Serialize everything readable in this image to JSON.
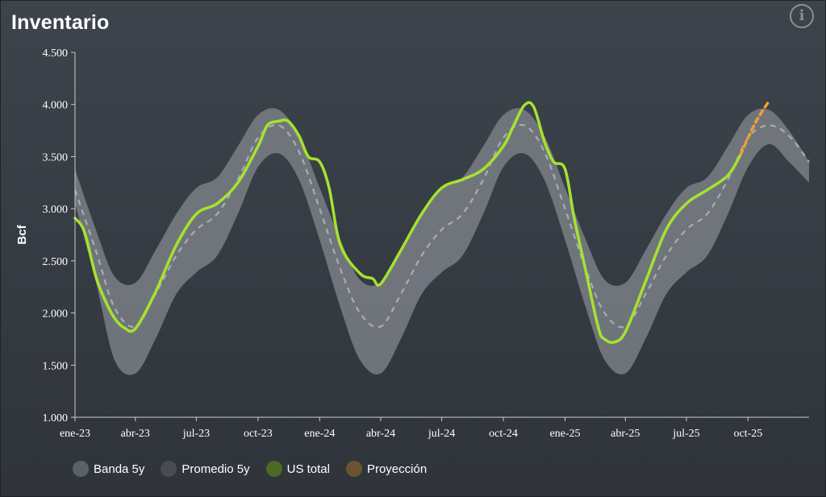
{
  "header": {
    "title": "Inventario",
    "info_icon_glyph": "i"
  },
  "colors": {
    "band": "#7a7f86",
    "average": "#a9adb2",
    "us_total": "#a6e22e",
    "projection": "#f0a030",
    "axis": "#c9cdd2",
    "text": "#ffffff"
  },
  "legend": [
    {
      "label": "Banda 5y",
      "color": "#5b616a"
    },
    {
      "label": "Promedio 5y",
      "color": "#474c53"
    },
    {
      "label": "US total",
      "color": "#4a6b24"
    },
    {
      "label": "Proyección",
      "color": "#6b5530"
    }
  ],
  "chart_data": {
    "type": "line",
    "title": "Inventario",
    "ylabel": "Bcf",
    "xlabel": "",
    "ylim": [
      1000,
      4500
    ],
    "yticks": [
      1000,
      1500,
      2000,
      2500,
      3000,
      3500,
      4000,
      4500
    ],
    "ytick_labels": [
      "1.000",
      "1.500",
      "2.000",
      "2.500",
      "3.000",
      "3.500",
      "4.000",
      "4.500"
    ],
    "xlim": [
      "2023-01-01",
      "2025-12-31"
    ],
    "xticks": [
      "2023-01-01",
      "2023-04-01",
      "2023-07-01",
      "2023-10-01",
      "2024-01-01",
      "2024-04-01",
      "2024-07-01",
      "2024-10-01",
      "2025-01-01",
      "2025-04-01",
      "2025-07-01",
      "2025-10-01"
    ],
    "xtick_labels": [
      "ene-23",
      "abr-23",
      "jul-23",
      "oct-23",
      "ene-24",
      "abr-24",
      "jul-24",
      "oct-24",
      "ene-25",
      "abr-25",
      "jul-25",
      "oct-25"
    ],
    "grid": false,
    "legend_position": "bottom-left",
    "series": [
      {
        "name": "Banda 5y",
        "kind": "band",
        "x": [
          "2023-01-01",
          "2023-02-01",
          "2023-03-01",
          "2023-04-01",
          "2023-05-01",
          "2023-06-01",
          "2023-07-01",
          "2023-08-01",
          "2023-09-01",
          "2023-10-01",
          "2023-11-01",
          "2023-12-01",
          "2024-01-01",
          "2024-02-01",
          "2024-03-01",
          "2024-04-01",
          "2024-05-01",
          "2024-06-01",
          "2024-07-01",
          "2024-08-01",
          "2024-09-01",
          "2024-10-01",
          "2024-11-01",
          "2024-12-01",
          "2025-01-01",
          "2025-02-01",
          "2025-03-01",
          "2025-04-01",
          "2025-05-01",
          "2025-06-01",
          "2025-07-01",
          "2025-08-01",
          "2025-09-01",
          "2025-10-01",
          "2025-11-01",
          "2025-12-01",
          "2025-12-31"
        ],
        "lower": [
          3050,
          2300,
          1550,
          1420,
          1750,
          2180,
          2390,
          2550,
          2950,
          3400,
          3530,
          3280,
          2700,
          2050,
          1550,
          1420,
          1750,
          2180,
          2390,
          2550,
          2950,
          3400,
          3530,
          3280,
          2700,
          2050,
          1550,
          1420,
          1750,
          2180,
          2390,
          2550,
          2950,
          3400,
          3620,
          3450,
          3250
        ],
        "upper": [
          3380,
          2800,
          2350,
          2290,
          2600,
          2950,
          3200,
          3300,
          3600,
          3900,
          3950,
          3700,
          3200,
          2700,
          2320,
          2290,
          2600,
          2950,
          3200,
          3300,
          3600,
          3900,
          3950,
          3700,
          3200,
          2700,
          2320,
          2290,
          2600,
          2950,
          3200,
          3300,
          3600,
          3900,
          3950,
          3750,
          3450
        ]
      },
      {
        "name": "Promedio 5y",
        "kind": "dashed",
        "x": [
          "2023-01-01",
          "2023-02-01",
          "2023-03-01",
          "2023-04-01",
          "2023-05-01",
          "2023-06-01",
          "2023-07-01",
          "2023-08-01",
          "2023-09-01",
          "2023-10-01",
          "2023-11-01",
          "2023-12-01",
          "2024-01-01",
          "2024-02-01",
          "2024-03-01",
          "2024-04-01",
          "2024-05-01",
          "2024-06-01",
          "2024-07-01",
          "2024-08-01",
          "2024-09-01",
          "2024-10-01",
          "2024-11-01",
          "2024-12-01",
          "2025-01-01",
          "2025-02-01",
          "2025-03-01",
          "2025-04-01",
          "2025-05-01",
          "2025-06-01",
          "2025-07-01",
          "2025-08-01",
          "2025-09-01",
          "2025-10-01",
          "2025-11-01",
          "2025-12-01",
          "2025-12-31"
        ],
        "values": [
          3180,
          2600,
          2050,
          1870,
          2180,
          2550,
          2800,
          2950,
          3280,
          3680,
          3800,
          3550,
          3000,
          2420,
          2000,
          1870,
          2180,
          2550,
          2800,
          2950,
          3280,
          3680,
          3800,
          3550,
          3000,
          2420,
          2000,
          1870,
          2180,
          2550,
          2800,
          2950,
          3280,
          3680,
          3800,
          3700,
          3450
        ]
      },
      {
        "name": "US total",
        "kind": "solid",
        "x": [
          "2023-01-01",
          "2023-01-15",
          "2023-02-01",
          "2023-02-15",
          "2023-03-01",
          "2023-03-15",
          "2023-04-01",
          "2023-05-01",
          "2023-06-01",
          "2023-07-01",
          "2023-08-01",
          "2023-09-01",
          "2023-10-01",
          "2023-10-15",
          "2023-11-01",
          "2023-11-15",
          "2023-12-01",
          "2023-12-15",
          "2024-01-01",
          "2024-01-15",
          "2024-02-01",
          "2024-03-01",
          "2024-03-20",
          "2024-04-01",
          "2024-05-01",
          "2024-06-01",
          "2024-07-01",
          "2024-08-01",
          "2024-09-01",
          "2024-10-01",
          "2024-10-15",
          "2024-11-01",
          "2024-11-15",
          "2024-12-01",
          "2024-12-15",
          "2025-01-01",
          "2025-01-15",
          "2025-02-01",
          "2025-02-20",
          "2025-03-01",
          "2025-03-15",
          "2025-04-01",
          "2025-05-01",
          "2025-06-01",
          "2025-07-01",
          "2025-08-01",
          "2025-09-01",
          "2025-09-20"
        ],
        "values": [
          2910,
          2780,
          2350,
          2120,
          1950,
          1860,
          1850,
          2200,
          2650,
          2950,
          3050,
          3250,
          3600,
          3800,
          3840,
          3840,
          3700,
          3500,
          3450,
          3200,
          2650,
          2380,
          2330,
          2280,
          2600,
          2950,
          3200,
          3280,
          3380,
          3600,
          3780,
          3990,
          3980,
          3650,
          3450,
          3380,
          2900,
          2400,
          1850,
          1750,
          1720,
          1820,
          2300,
          2800,
          3050,
          3180,
          3320,
          3520
        ]
      },
      {
        "name": "Proyección",
        "kind": "dotted",
        "x": [
          "2025-09-20",
          "2025-10-01",
          "2025-10-15",
          "2025-11-01"
        ],
        "values": [
          3520,
          3680,
          3860,
          4030
        ]
      }
    ]
  }
}
